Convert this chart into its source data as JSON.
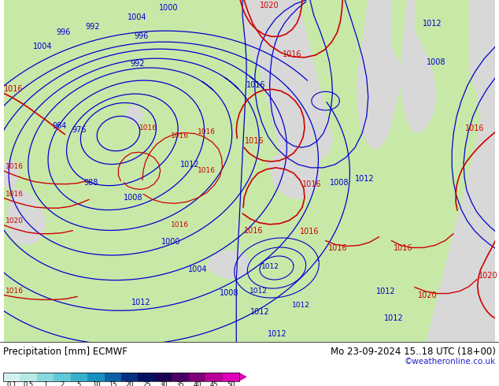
{
  "title_left": "Precipitation [mm] ECMWF",
  "title_right": "Mo 23-09-2024 15..18 UTC (18+00)",
  "credit": "©weatheronline.co.uk",
  "colorbar_levels": [
    "0.1",
    "0.5",
    "1",
    "2",
    "5",
    "10",
    "15",
    "20",
    "25",
    "30",
    "35",
    "40",
    "45",
    "50"
  ],
  "colorbar_colors": [
    "#d4f0f0",
    "#b8e8e8",
    "#88d8e0",
    "#60c8d8",
    "#38b0cc",
    "#1890c0",
    "#0c60a8",
    "#083080",
    "#041060",
    "#1a0050",
    "#4a0068",
    "#800078",
    "#b80098",
    "#e000b8"
  ],
  "land_color": "#c8e8a8",
  "sea_color": "#d8d8d8",
  "border_color": "#a0a0a0",
  "blue": "#0000cc",
  "red": "#cc0000",
  "fig_width": 6.34,
  "fig_height": 4.9,
  "dpi": 100
}
